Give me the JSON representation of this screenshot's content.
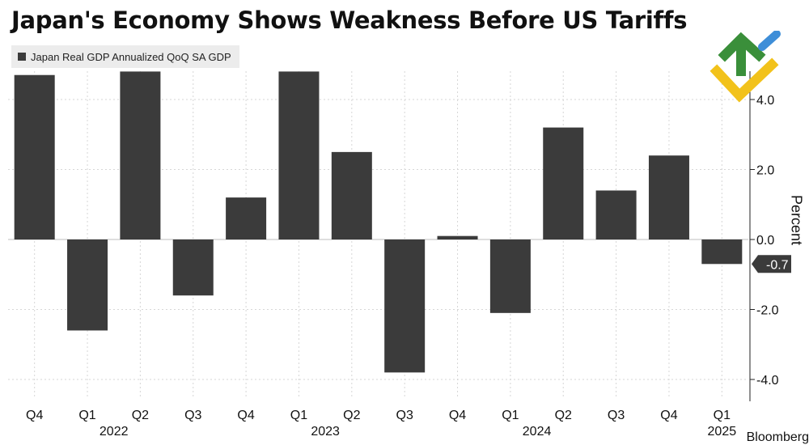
{
  "page": {
    "title": "Japan's Economy Shows Weakness Before US Tariffs",
    "footer_text": "Bloomberg"
  },
  "colors": {
    "bar": "#3b3b3b",
    "gridline": "#d6d6d6",
    "zero_line": "#bdbdbd",
    "text": "#111111",
    "logo_green": "#3a8f3a",
    "logo_blue": "#3e8ed8",
    "logo_yellow": "#f2c21b"
  },
  "icons": {
    "logo": "brand-logo-icon"
  },
  "chart_data": {
    "type": "bar",
    "title": "Japan's Economy Shows Weakness Before US Tariffs",
    "ylabel": "Percent",
    "xlabel": "",
    "ylim": [
      -4.6,
      4.9
    ],
    "yticks": [
      4,
      2,
      0,
      -2,
      -4
    ],
    "ytick_labels": [
      "4.0",
      "2.0",
      "0.0",
      "-2.0",
      "-4.0"
    ],
    "grid": true,
    "legend_position": "top-left",
    "categories": [
      "Q4",
      "Q1",
      "Q2",
      "Q3",
      "Q4",
      "Q1",
      "Q2",
      "Q3",
      "Q4",
      "Q1",
      "Q2",
      "Q3",
      "Q4",
      "Q1"
    ],
    "year_labels": [
      {
        "label": "2022",
        "index": 2
      },
      {
        "label": "2023",
        "index": 6
      },
      {
        "label": "2024",
        "index": 10
      },
      {
        "label": "2025",
        "index": 13
      }
    ],
    "series": [
      {
        "name": "Japan Real GDP Annualized QoQ SA GDP",
        "values": [
          4.7,
          -2.6,
          4.8,
          -1.6,
          1.2,
          4.8,
          2.5,
          -3.8,
          0.1,
          -2.1,
          3.2,
          1.4,
          2.4,
          -0.7
        ]
      }
    ],
    "last_value_label": "-0.7"
  }
}
